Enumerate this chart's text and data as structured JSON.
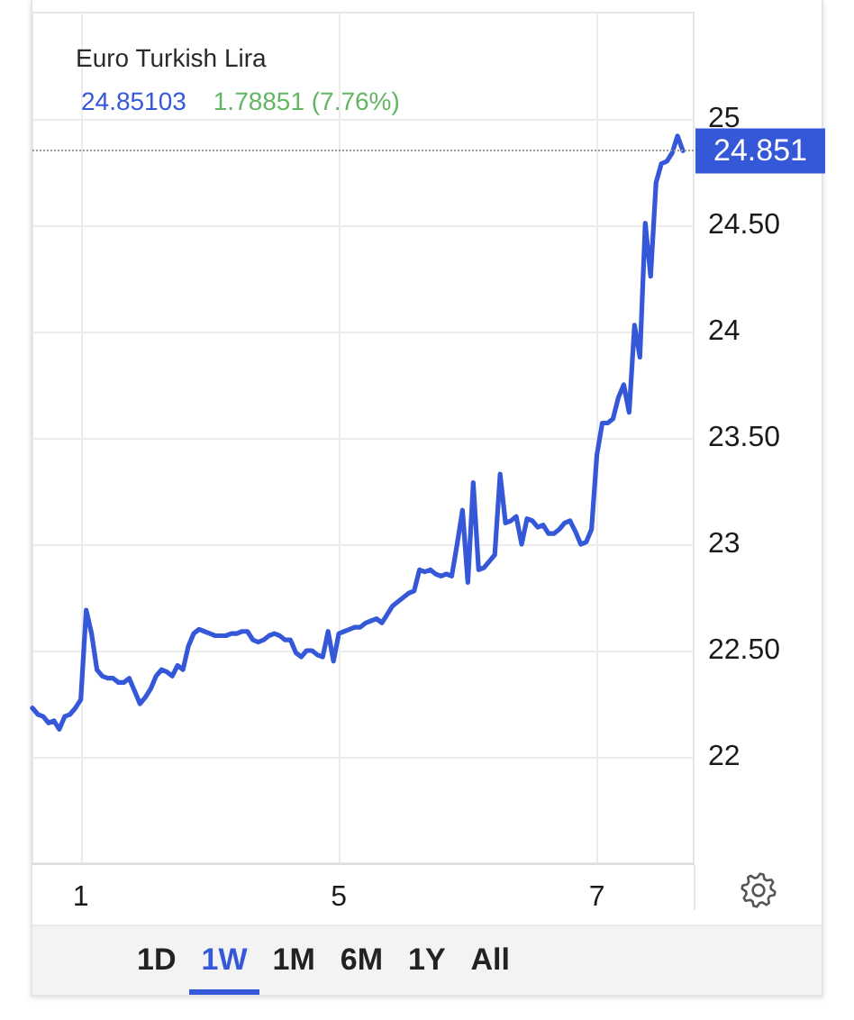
{
  "chart_data": {
    "type": "line",
    "title": "Euro Turkish Lira",
    "subtitle": "24.85103",
    "annotations": [
      "1.78851 (7.76%)",
      "1D",
      "1W",
      "1M",
      "6M",
      "1Y",
      "All"
    ],
    "categories": [
      null,
      null,
      null,
      null,
      null,
      null,
      null,
      null,
      null,
      "1",
      null,
      null,
      null,
      null,
      null,
      null,
      null,
      null,
      null,
      null,
      null,
      null,
      null,
      null,
      null,
      null,
      null,
      null,
      null,
      null,
      null,
      null,
      null,
      null,
      null,
      null,
      null,
      null,
      null,
      null,
      null,
      null,
      null,
      null,
      null,
      null,
      null,
      null,
      null,
      null,
      null,
      null,
      null,
      null,
      null,
      null,
      null,
      "5",
      null,
      null,
      null,
      null,
      null,
      null,
      null,
      null,
      null,
      null,
      null,
      null,
      null,
      null,
      null,
      null,
      null,
      null,
      null,
      null,
      null,
      null,
      null,
      null,
      null,
      null,
      null,
      null,
      null,
      null,
      null,
      null,
      null,
      null,
      null,
      null,
      null,
      null,
      null,
      null,
      null,
      null,
      null,
      null,
      null,
      null,
      null,
      "7",
      null,
      null,
      null,
      null,
      null,
      null,
      null,
      null,
      null,
      null,
      null,
      null,
      null,
      null,
      null,
      null,
      null,
      null
    ],
    "series": [
      {
        "color": "#3558d8",
        "values": [
          22.23,
          22.2,
          22.19,
          22.16,
          22.17,
          22.13,
          22.19,
          22.2,
          22.23,
          22.27,
          22.69,
          22.58,
          22.41,
          22.38,
          22.37,
          22.37,
          22.35,
          22.35,
          22.37,
          22.31,
          22.25,
          22.28,
          22.32,
          22.38,
          22.41,
          22.4,
          22.38,
          22.43,
          22.41,
          22.52,
          22.58,
          22.6,
          22.59,
          22.58,
          22.57,
          22.57,
          22.57,
          22.58,
          22.58,
          22.59,
          22.59,
          22.55,
          22.54,
          22.55,
          22.57,
          22.58,
          22.57,
          22.55,
          22.55,
          22.49,
          22.47,
          22.5,
          22.5,
          22.48,
          22.47,
          22.59,
          22.45,
          22.58,
          22.59,
          22.6,
          22.61,
          22.61,
          22.63,
          22.64,
          22.65,
          22.63,
          22.67,
          22.71,
          22.73,
          22.75,
          22.77,
          22.78,
          22.88,
          22.87,
          22.88,
          22.86,
          22.85,
          22.86,
          22.85,
          23.0,
          23.16,
          22.82,
          23.29,
          22.88,
          22.89,
          22.92,
          22.95,
          23.33,
          23.1,
          23.11,
          23.13,
          23.0,
          23.12,
          23.11,
          23.08,
          23.09,
          23.05,
          23.05,
          23.07,
          23.1,
          23.11,
          23.06,
          23.0,
          23.01,
          23.07,
          23.42,
          23.57,
          23.57,
          23.59,
          23.69,
          23.75,
          23.62,
          24.03,
          23.88,
          24.51,
          24.26,
          24.7,
          24.79,
          24.8,
          24.84,
          24.92,
          24.85,
          null,
          null
        ]
      }
    ],
    "ylim": [
      21.5,
      25.5
    ],
    "yticks": [
      22,
      {
        "value": 22.5,
        "label": "22.50"
      },
      23,
      {
        "value": 23.5,
        "label": "23.50"
      },
      24,
      {
        "value": 24.5,
        "label": "24.50"
      },
      25
    ],
    "grid": true,
    "marker": "none",
    "line_style": "solid",
    "ref_lines": [
      {
        "axis": "y",
        "value": 24.851,
        "label": "24.851",
        "color": "#9a9a9a",
        "line_style": "dotted"
      }
    ]
  }
}
